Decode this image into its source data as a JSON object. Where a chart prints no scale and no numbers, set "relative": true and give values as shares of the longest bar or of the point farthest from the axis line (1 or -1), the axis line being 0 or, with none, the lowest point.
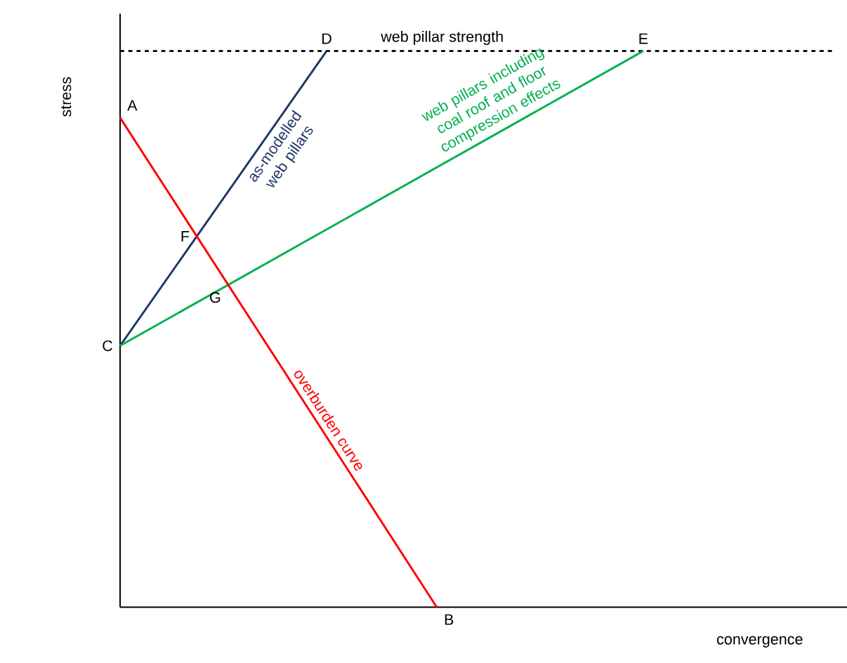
{
  "chart_data": {
    "type": "line",
    "relative": true,
    "xlabel": "convergence",
    "ylabel": "stress",
    "categories": [
      null,
      null,
      null,
      null,
      null,
      null,
      null,
      null,
      null,
      null,
      null,
      null,
      null,
      null,
      null,
      null,
      null,
      null,
      null,
      null,
      null,
      null,
      null,
      null,
      null,
      null,
      null,
      null,
      null,
      null,
      null,
      null,
      null,
      null,
      null,
      null,
      null,
      null,
      null,
      null,
      null,
      null,
      null,
      null,
      null,
      null,
      null,
      null,
      null,
      null,
      null,
      null,
      null
    ],
    "series": [
      {
        "name": "web pillar strength",
        "color": "#000000",
        "line_style": "dashed",
        "values": [
          1,
          null,
          null,
          null,
          null,
          null,
          null,
          null,
          null,
          null,
          null,
          null,
          null,
          null,
          null,
          null,
          null,
          null,
          null,
          null,
          null,
          null,
          null,
          null,
          null,
          null,
          null,
          null,
          null,
          null,
          null,
          null,
          null,
          null,
          null,
          null,
          null,
          null,
          null,
          null,
          null,
          null,
          null,
          null,
          null,
          null,
          null,
          null,
          null,
          null,
          null,
          null,
          1
        ]
      },
      {
        "name": "as-modelled web pillars",
        "color": "#1f3864",
        "line_style": "solid",
        "values": [
          0.47,
          null,
          null,
          null,
          null,
          null,
          null,
          null,
          null,
          null,
          null,
          null,
          null,
          null,
          null,
          1,
          null,
          null,
          null,
          null,
          null,
          null,
          null,
          null,
          null,
          null,
          null,
          null,
          null,
          null,
          null,
          null,
          null,
          null,
          null,
          null,
          null,
          null,
          null,
          null,
          null,
          null,
          null,
          null,
          null,
          null,
          null,
          null,
          null,
          null,
          null,
          null,
          null
        ]
      },
      {
        "name": "web pillars including coal roof and floor compression effects",
        "color": "#00b050",
        "line_style": "solid",
        "values": [
          0.47,
          null,
          null,
          null,
          null,
          null,
          null,
          null,
          null,
          null,
          null,
          null,
          null,
          null,
          null,
          null,
          null,
          null,
          null,
          null,
          null,
          null,
          null,
          null,
          null,
          null,
          null,
          null,
          null,
          null,
          null,
          null,
          null,
          null,
          null,
          null,
          null,
          null,
          1,
          null,
          null,
          null,
          null,
          null,
          null,
          null,
          null,
          null,
          null,
          null,
          null,
          null,
          null
        ]
      },
      {
        "name": "overburden curve",
        "color": "#ff0000",
        "line_style": "solid",
        "values": [
          0.88,
          null,
          null,
          null,
          null,
          null,
          null,
          null,
          null,
          null,
          null,
          null,
          null,
          null,
          null,
          null,
          null,
          null,
          null,
          null,
          null,
          null,
          null,
          0,
          null,
          null,
          null,
          null,
          null,
          null,
          null,
          null,
          null,
          null,
          null,
          null,
          null,
          null,
          null,
          null,
          null,
          null,
          null,
          null,
          null,
          null,
          null,
          null,
          null,
          null,
          null,
          null,
          null
        ]
      }
    ],
    "annotations": [
      "A",
      "B",
      "C",
      "D",
      "E",
      "F",
      "G"
    ]
  }
}
